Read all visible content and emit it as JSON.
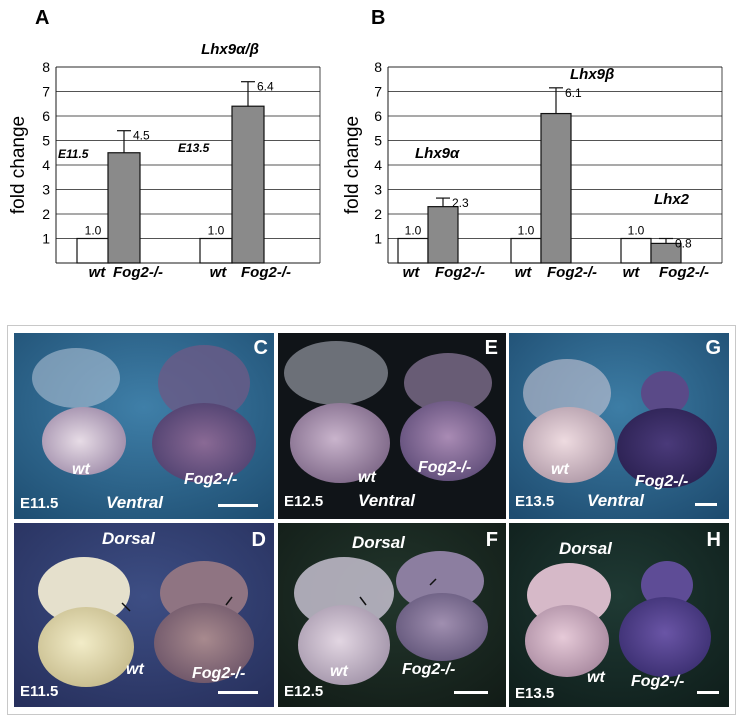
{
  "chart_data": [
    {
      "type": "bar",
      "panel": "A",
      "title": "Lhx9α/β",
      "ylabel": "fold change",
      "ylim": [
        0,
        8
      ],
      "yticks": [
        "1",
        "2",
        "3",
        "4",
        "5",
        "6",
        "7",
        "8"
      ],
      "categories": [
        "wt",
        "Fog2-/-",
        "wt",
        "Fog2-/-"
      ],
      "values": [
        1.0,
        4.5,
        1.0,
        6.4
      ],
      "value_labels": [
        "1.0",
        "4.5",
        "1.0",
        "6.4"
      ],
      "error_upper": [
        0,
        5.4,
        0,
        7.4
      ],
      "groups": [
        "E11.5",
        "E13.5"
      ],
      "colors": {
        "wt": "#ffffff",
        "mutant": "#8a8a8a"
      }
    },
    {
      "type": "bar",
      "panel": "B",
      "ylabel": "fold change",
      "ylim": [
        0,
        8
      ],
      "yticks": [
        "1",
        "2",
        "3",
        "4",
        "5",
        "6",
        "7",
        "8"
      ],
      "categories": [
        "wt",
        "Fog2-/-",
        "wt",
        "Fog2-/-",
        "wt",
        "Fog2-/-"
      ],
      "values": [
        1.0,
        2.3,
        1.0,
        6.1,
        1.0,
        0.8
      ],
      "value_labels": [
        "1.0",
        "2.3",
        "1.0",
        "6.1",
        "1.0",
        "0.8"
      ],
      "error_upper": [
        0,
        2.65,
        0,
        7.15,
        0,
        1.0
      ],
      "groups": [
        "Lhx9α",
        "Lhx9β",
        "Lhx2"
      ],
      "colors": {
        "wt": "#ffffff",
        "mutant": "#8a8a8a"
      }
    }
  ],
  "photos": [
    {
      "letter": "C",
      "stage": "E11.5",
      "view": "Ventral",
      "wt": "wt",
      "mutant": "Fog2-/-"
    },
    {
      "letter": "E",
      "stage": "E12.5",
      "view": "Ventral",
      "wt": "wt",
      "mutant": "Fog2-/-"
    },
    {
      "letter": "G",
      "stage": "E13.5",
      "view": "Ventral",
      "wt": "wt",
      "mutant": "Fog2-/-"
    },
    {
      "letter": "D",
      "stage": "E11.5",
      "view": "Dorsal",
      "wt": "wt",
      "mutant": "Fog2-/-"
    },
    {
      "letter": "F",
      "stage": "E12.5",
      "view": "Dorsal",
      "wt": "wt",
      "mutant": "Fog2-/-"
    },
    {
      "letter": "H",
      "stage": "E13.5",
      "view": "Dorsal",
      "wt": "wt",
      "mutant": "Fog2-/-"
    }
  ]
}
